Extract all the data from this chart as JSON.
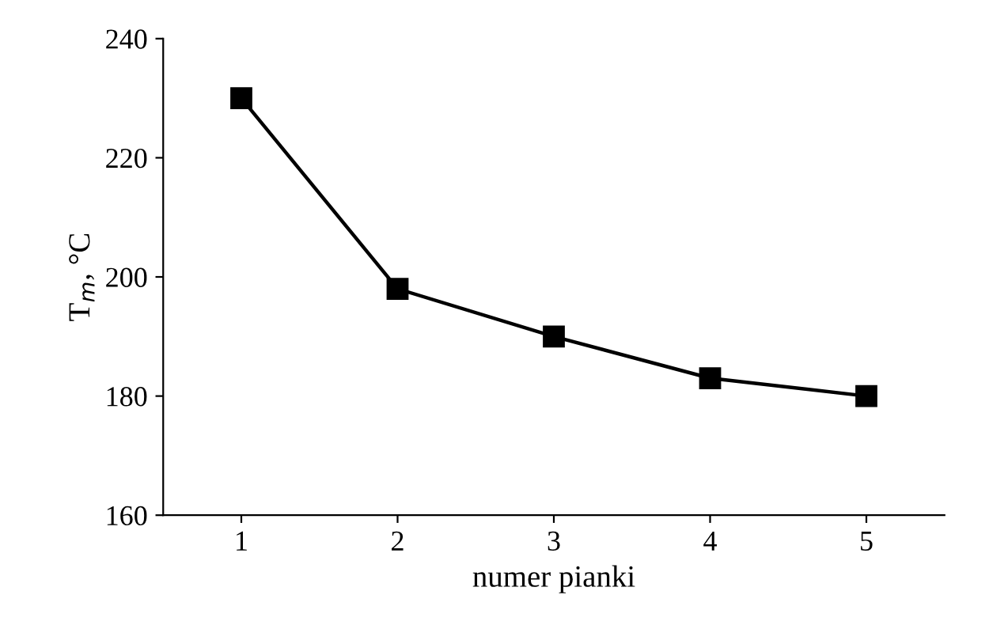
{
  "chart_data": {
    "type": "line",
    "xlabel": "numer pianki",
    "ylabel": "T$_{m}$, °C",
    "categories": [
      "1",
      "2",
      "3",
      "4",
      "5"
    ],
    "series": [
      {
        "color": "#000000",
        "values": [
          230,
          198,
          190,
          183,
          180
        ]
      }
    ],
    "ylim": [
      160,
      240
    ],
    "yticks": [
      160,
      180,
      200,
      220,
      240
    ],
    "marker": "square",
    "line_style": "solid",
    "grid": false,
    "legend": false
  }
}
